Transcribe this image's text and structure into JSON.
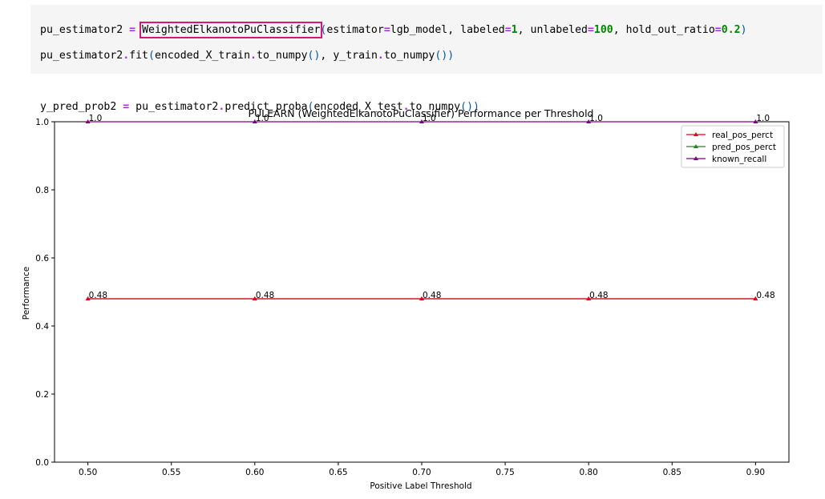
{
  "code": {
    "line1": {
      "var": "pu_estimator2",
      "eq": "=",
      "classname": "WeightedElkanotoPuClassifier",
      "args_open": "(",
      "arg1_name": "estimator",
      "arg1_eq": "=",
      "arg1_val": "lgb_model",
      "sep1": ", ",
      "arg2_name": "labeled",
      "arg2_eq": "=",
      "arg2_val": "1",
      "sep2": ", ",
      "arg3_name": "unlabeled",
      "arg3_eq": "=",
      "arg3_val": "100",
      "sep3": ", ",
      "arg4_name": "hold_out_ratio",
      "arg4_eq": "=",
      "arg4_val": "0.2",
      "args_close": ")"
    },
    "line2": {
      "obj": "pu_estimator2",
      "dot": ".",
      "method": "fit",
      "open": "(",
      "a1": "encoded_X_train",
      "a1dot": ".",
      "a1m": "to_numpy",
      "a1p": "()",
      "sep": ", ",
      "a2": "y_train",
      "a2dot": ".",
      "a2m": "to_numpy",
      "a2p": "()",
      "close": ")"
    },
    "line3": {
      "var": "y_pred_prob2",
      "eq": "=",
      "obj": "pu_estimator2",
      "dot": ".",
      "method": "predict_proba",
      "open": "(",
      "a1": "encoded_X_test",
      "a1dot": ".",
      "a1m": "to_numpy",
      "a1p": "()",
      "close": ")"
    }
  },
  "chart_data": {
    "type": "line",
    "title": "PULEARN (WeightedElkanotoPuClassifier) Performance per Threshold",
    "xlabel": "Positive Label Threshold",
    "ylabel": "Performance",
    "x": [
      0.5,
      0.6,
      0.7,
      0.8,
      0.9
    ],
    "xlim": [
      0.48,
      0.92
    ],
    "ylim": [
      0.0,
      1.0
    ],
    "xticks": [
      0.5,
      0.55,
      0.6,
      0.65,
      0.7,
      0.75,
      0.8,
      0.85,
      0.9
    ],
    "xtick_labels": [
      "0.50",
      "0.55",
      "0.60",
      "0.65",
      "0.70",
      "0.75",
      "0.80",
      "0.85",
      "0.90"
    ],
    "yticks": [
      0.0,
      0.2,
      0.4,
      0.6,
      0.8,
      1.0
    ],
    "ytick_labels": [
      "0.0",
      "0.2",
      "0.4",
      "0.6",
      "0.8",
      "1.0"
    ],
    "grid": false,
    "legend_position": "top-right",
    "series": [
      {
        "name": "real_pos_perct",
        "values": [
          0.48,
          0.48,
          0.48,
          0.48,
          0.48
        ],
        "color": "#e8001c",
        "labels": [
          "0.48",
          "0.48",
          "0.48",
          "0.48",
          "0.48"
        ]
      },
      {
        "name": "pred_pos_perct",
        "values": [
          0.48,
          0.48,
          0.48,
          0.48,
          0.48
        ],
        "color": "#1a8a1a",
        "labels": []
      },
      {
        "name": "known_recall",
        "values": [
          1.0,
          1.0,
          1.0,
          1.0,
          1.0
        ],
        "color": "#800080",
        "labels": [
          "1.0",
          "1.0",
          "1.0",
          "1.0",
          "1.0"
        ]
      }
    ]
  }
}
